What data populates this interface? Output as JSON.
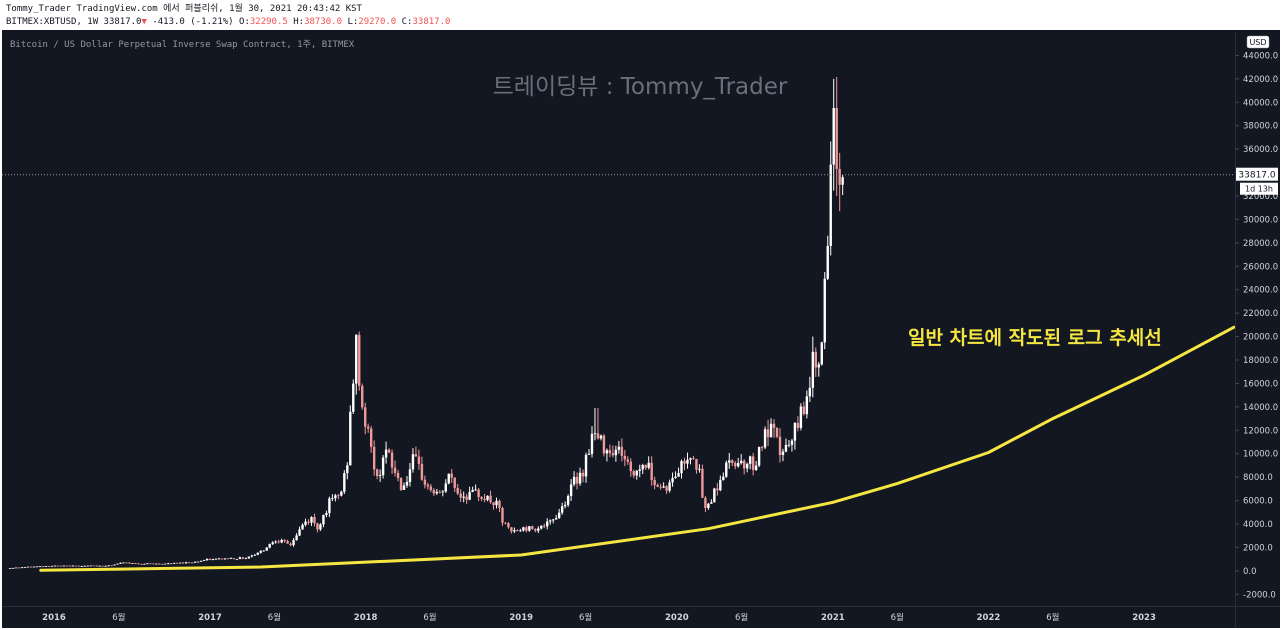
{
  "header": {
    "publish_line": "Tommy_Trader TradingView.com 에서 퍼블리쉬, 1월 30, 2021 20:43:42 KST",
    "symbol": "BITMEX:XBTUSD, 1W",
    "last": "33817.0",
    "change_arrow": "▼",
    "change": "-413.0 (-1.21%)",
    "o_label": "O:",
    "o_value": "32290.5",
    "h_label": "H:",
    "h_value": "38730.0",
    "l_label": "L:",
    "l_value": "29270.0",
    "c_label": "C:",
    "c_value": "33817.0"
  },
  "instrument_title": "Bitcoin / US Dollar Perpetual Inverse Swap Contract, 1주, BITMEX",
  "watermark": "트레이딩뷰 : Tommy_Trader",
  "annotation": "일반 차트에 작도된 로그 추세선",
  "currency_badge": "USD",
  "price_tag": {
    "value": "33817.0",
    "countdown": "1d 13h"
  },
  "colors": {
    "background": "#131722",
    "up_candle": "#ffffff",
    "down_candle": "#ef9a9a",
    "trendline": "#f5e642",
    "annotation": "#f5e642",
    "watermark": "#6b6f7a",
    "axis_text": "#d1d4dc"
  },
  "chart_data": {
    "type": "candlestick",
    "symbol": "BITMEX:XBTUSD",
    "interval": "1W",
    "y_scale": "linear",
    "ylim": [
      -3000,
      46000
    ],
    "xlim": [
      "2015-09-01",
      "2023-07-31"
    ],
    "y_ticks": [
      "-2000.0",
      "0.0",
      "2000.0",
      "4000.0",
      "6000.0",
      "8000.0",
      "10000.0",
      "12000.0",
      "14000.0",
      "16000.0",
      "18000.0",
      "20000.0",
      "22000.0",
      "24000.0",
      "26000.0",
      "28000.0",
      "30000.0",
      "32000.0",
      "34000.0",
      "36000.0",
      "38000.0",
      "40000.0",
      "42000.0",
      "44000.0"
    ],
    "x_ticks": [
      {
        "label": "2016",
        "date": "2016-01-01"
      },
      {
        "label": "6월",
        "date": "2016-06-01"
      },
      {
        "label": "2017",
        "date": "2017-01-01"
      },
      {
        "label": "6월",
        "date": "2017-06-01"
      },
      {
        "label": "2018",
        "date": "2018-01-01"
      },
      {
        "label": "6월",
        "date": "2018-06-01"
      },
      {
        "label": "2019",
        "date": "2019-01-01"
      },
      {
        "label": "6월",
        "date": "2019-06-01"
      },
      {
        "label": "2020",
        "date": "2020-01-01"
      },
      {
        "label": "6월",
        "date": "2020-06-01"
      },
      {
        "label": "2021",
        "date": "2021-01-01"
      },
      {
        "label": "6월",
        "date": "2021-06-01"
      },
      {
        "label": "2022",
        "date": "2022-01-01"
      },
      {
        "label": "6월",
        "date": "2022-06-01"
      },
      {
        "label": "2023",
        "date": "2023-01-01"
      }
    ],
    "close_path": [
      [
        "2015-09-20",
        230
      ],
      [
        "2015-11-01",
        320
      ],
      [
        "2016-01-01",
        430
      ],
      [
        "2016-03-01",
        420
      ],
      [
        "2016-05-20",
        450
      ],
      [
        "2016-06-15",
        700
      ],
      [
        "2016-08-01",
        600
      ],
      [
        "2016-10-01",
        610
      ],
      [
        "2016-12-01",
        750
      ],
      [
        "2017-01-01",
        950
      ],
      [
        "2017-02-15",
        1050
      ],
      [
        "2017-04-01",
        1100
      ],
      [
        "2017-05-10",
        1700
      ],
      [
        "2017-06-10",
        2700
      ],
      [
        "2017-07-15",
        2200
      ],
      [
        "2017-08-15",
        4000
      ],
      [
        "2017-09-05",
        4500
      ],
      [
        "2017-09-15",
        3500
      ],
      [
        "2017-10-15",
        5800
      ],
      [
        "2017-11-10",
        6500
      ],
      [
        "2017-11-25",
        9000
      ],
      [
        "2017-12-10",
        16500
      ],
      [
        "2017-12-17",
        19000
      ],
      [
        "2017-12-31",
        14000
      ],
      [
        "2018-01-15",
        11500
      ],
      [
        "2018-02-05",
        7500
      ],
      [
        "2018-02-20",
        10500
      ],
      [
        "2018-03-10",
        9000
      ],
      [
        "2018-04-05",
        7000
      ],
      [
        "2018-05-01",
        9500
      ],
      [
        "2018-06-01",
        7200
      ],
      [
        "2018-07-01",
        6400
      ],
      [
        "2018-07-25",
        8200
      ],
      [
        "2018-08-15",
        6400
      ],
      [
        "2018-10-01",
        6600
      ],
      [
        "2018-11-15",
        5500
      ],
      [
        "2018-11-25",
        4200
      ],
      [
        "2018-12-15",
        3300
      ],
      [
        "2019-01-15",
        3600
      ],
      [
        "2019-02-15",
        3700
      ],
      [
        "2019-03-15",
        4000
      ],
      [
        "2019-04-10",
        5200
      ],
      [
        "2019-05-15",
        7800
      ],
      [
        "2019-06-01",
        8500
      ],
      [
        "2019-06-25",
        11800
      ],
      [
        "2019-07-10",
        11000
      ],
      [
        "2019-08-01",
        10500
      ],
      [
        "2019-09-01",
        10200
      ],
      [
        "2019-09-25",
        8200
      ],
      [
        "2019-10-26",
        9300
      ],
      [
        "2019-11-25",
        7200
      ],
      [
        "2019-12-20",
        7200
      ],
      [
        "2020-01-15",
        8800
      ],
      [
        "2020-02-12",
        10300
      ],
      [
        "2020-02-28",
        8700
      ],
      [
        "2020-03-13",
        5000
      ],
      [
        "2020-03-31",
        6400
      ],
      [
        "2020-04-30",
        8700
      ],
      [
        "2020-05-20",
        9500
      ],
      [
        "2020-06-15",
        9300
      ],
      [
        "2020-07-10",
        9200
      ],
      [
        "2020-07-28",
        11200
      ],
      [
        "2020-08-18",
        12000
      ],
      [
        "2020-09-05",
        10200
      ],
      [
        "2020-10-01",
        10600
      ],
      [
        "2020-10-21",
        13000
      ],
      [
        "2020-11-10",
        15500
      ],
      [
        "2020-11-25",
        18000
      ],
      [
        "2020-12-10",
        19000
      ],
      [
        "2020-12-20",
        23500
      ],
      [
        "2020-12-31",
        29000
      ],
      [
        "2021-01-07",
        38000
      ],
      [
        "2021-01-14",
        36000
      ],
      [
        "2021-01-24",
        33817
      ]
    ],
    "major_highs": [
      {
        "date": "2017-12-17",
        "value": 20000
      },
      {
        "date": "2019-06-26",
        "value": 13900
      },
      {
        "date": "2021-01-08",
        "value": 42000
      }
    ],
    "trendline": {
      "type": "log_curve",
      "points": [
        [
          "2015-12-01",
          50
        ],
        [
          "2017-05-01",
          330
        ],
        [
          "2019-01-01",
          1350
        ],
        [
          "2020-03-15",
          3600
        ],
        [
          "2021-01-01",
          5850
        ],
        [
          "2021-06-01",
          7450
        ],
        [
          "2022-01-01",
          10100
        ],
        [
          "2022-06-01",
          13000
        ],
        [
          "2023-01-01",
          16700
        ],
        [
          "2023-07-31",
          20800
        ]
      ]
    }
  }
}
